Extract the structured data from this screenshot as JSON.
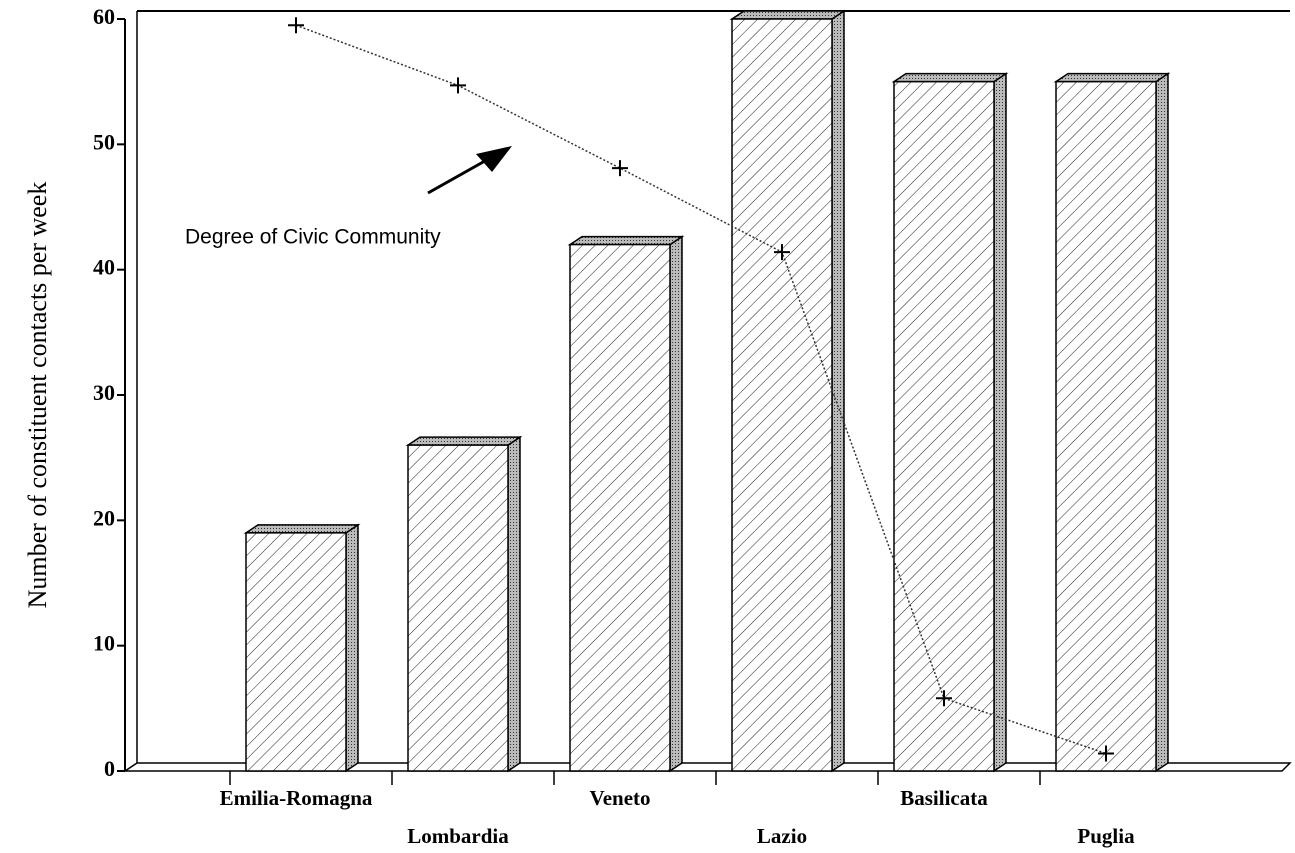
{
  "chart_data": {
    "type": "bar",
    "ylabel": "Number of constituent contacts per week",
    "categories": [
      "Emilia-Romagna",
      "Lombardia",
      "Veneto",
      "Lazio",
      "Basilicata",
      "Puglia"
    ],
    "series": [
      {
        "type": "bar",
        "color": "#ffffff",
        "values": [
          19,
          26,
          42,
          60,
          55,
          55
        ]
      },
      {
        "type": "line",
        "name": "Degree of Civic Community",
        "color": "#333333",
        "values": [
          59.5,
          54.7,
          48.1,
          41.4,
          5.8,
          1.4
        ]
      }
    ],
    "ylim": [
      0,
      60
    ],
    "yticks": [
      0,
      10,
      20,
      30,
      40,
      50,
      60
    ]
  }
}
